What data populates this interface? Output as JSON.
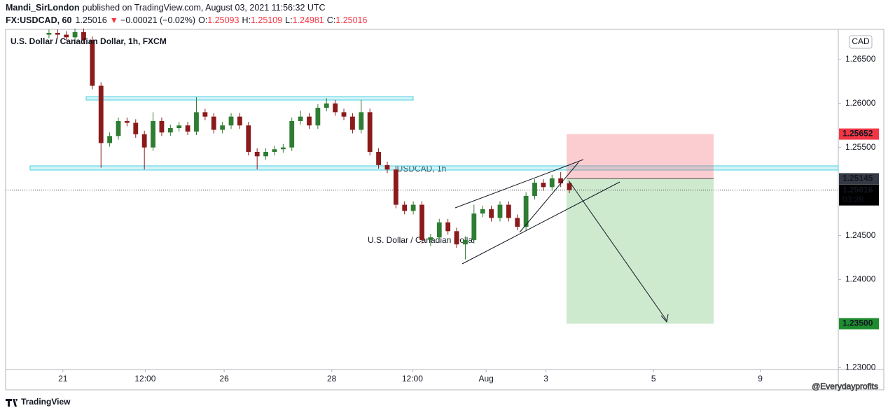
{
  "header": {
    "author": "Mandi_SirLondon",
    "published": "published on TradingView.com, August 03, 2021 11:56:32 UTC",
    "symbol": "FX:USDCAD, 60",
    "price": "1.25016",
    "change": "−0.00021 (−0.02%)",
    "ohlc": [
      {
        "label": "O:",
        "value": "1.25093"
      },
      {
        "label": "H:",
        "value": "1.25109"
      },
      {
        "label": "L:",
        "value": "1.24981"
      },
      {
        "label": "C:",
        "value": "1.25016"
      }
    ]
  },
  "chart_data": {
    "type": "candlestick",
    "title": "U.S. Dollar / Canadian Dollar, 1h, FXCM",
    "watermark": "USDCAD, 1h",
    "watermark_subtitle": "U.S. Dollar / Canadian Dollar",
    "currency": "CAD",
    "up_color": "#2e7d32",
    "down_color": "#8b1a1a",
    "open": [
      1.2678,
      1.268,
      1.2678,
      1.2675,
      1.2681,
      1.2672,
      1.262,
      1.2555,
      1.2563,
      1.258,
      1.2578,
      1.2565,
      1.255,
      1.258,
      1.2567,
      1.2572,
      1.2575,
      1.2568,
      1.259,
      1.2585,
      1.257,
      1.2575,
      1.2585,
      1.2575,
      1.2545,
      1.254,
      1.2545,
      1.2548,
      1.255,
      1.258,
      1.2585,
      1.2575,
      1.2595,
      1.26,
      1.259,
      1.2585,
      1.257,
      1.259,
      1.2545,
      1.253,
      1.2525,
      1.2485,
      1.2478,
      1.2485,
      1.2445,
      1.2448,
      1.2465,
      1.2455,
      1.244,
      1.2445,
      1.2475,
      1.248,
      1.247,
      1.2485,
      1.247,
      1.246,
      1.2495,
      1.251,
      1.2505,
      1.2515,
      1.25093
    ],
    "high": [
      1.2684,
      1.2684,
      1.2682,
      1.2685,
      1.2685,
      1.2676,
      1.2624,
      1.2567,
      1.2584,
      1.2584,
      1.2582,
      1.2569,
      1.259,
      1.2584,
      1.2576,
      1.2579,
      1.2579,
      1.2607,
      1.2594,
      1.2589,
      1.2579,
      1.2589,
      1.2589,
      1.2579,
      1.2549,
      1.2549,
      1.2552,
      1.2554,
      1.2584,
      1.2592,
      1.2589,
      1.2599,
      1.2606,
      1.2604,
      1.2594,
      1.2589,
      1.2604,
      1.2594,
      1.2549,
      1.2534,
      1.2529,
      1.2489,
      1.2489,
      1.2489,
      1.2452,
      1.2469,
      1.2469,
      1.2459,
      1.2449,
      1.2485,
      1.2484,
      1.2484,
      1.2489,
      1.2489,
      1.2474,
      1.2499,
      1.2514,
      1.2514,
      1.2519,
      1.2522,
      1.25109
    ],
    "low": [
      1.2674,
      1.2674,
      1.2671,
      1.2671,
      1.2668,
      1.2616,
      1.2527,
      1.2551,
      1.2559,
      1.2574,
      1.2561,
      1.2525,
      1.2546,
      1.2563,
      1.2563,
      1.2568,
      1.2564,
      1.2564,
      1.2581,
      1.2566,
      1.2566,
      1.2571,
      1.2571,
      1.2541,
      1.2525,
      1.2536,
      1.2541,
      1.2544,
      1.2546,
      1.2576,
      1.2571,
      1.2571,
      1.2591,
      1.2586,
      1.2581,
      1.2566,
      1.2566,
      1.2541,
      1.2526,
      1.2521,
      1.2481,
      1.2474,
      1.2474,
      1.2441,
      1.2438,
      1.2444,
      1.2451,
      1.2436,
      1.2423,
      1.2441,
      1.2471,
      1.2466,
      1.2466,
      1.2466,
      1.2456,
      1.2456,
      1.2491,
      1.2501,
      1.2501,
      1.2505,
      1.24981
    ],
    "close": [
      1.268,
      1.2678,
      1.2675,
      1.2681,
      1.2672,
      1.262,
      1.2555,
      1.2563,
      1.258,
      1.2578,
      1.2565,
      1.255,
      1.258,
      1.2567,
      1.2572,
      1.2575,
      1.2568,
      1.259,
      1.2585,
      1.257,
      1.2575,
      1.2585,
      1.2575,
      1.2545,
      1.254,
      1.2545,
      1.2548,
      1.255,
      1.258,
      1.2585,
      1.2575,
      1.2595,
      1.26,
      1.259,
      1.2585,
      1.257,
      1.259,
      1.2545,
      1.253,
      1.2525,
      1.2485,
      1.2478,
      1.2485,
      1.2445,
      1.2448,
      1.2465,
      1.2455,
      1.244,
      1.2445,
      1.2475,
      1.248,
      1.247,
      1.2485,
      1.247,
      1.246,
      1.2495,
      1.251,
      1.2505,
      1.2515,
      1.25093,
      1.25016
    ],
    "xlim": [
      -5,
      91
    ],
    "xticks": [
      {
        "value": 1.6,
        "label": "21"
      },
      {
        "value": 11.1,
        "label": "12:00"
      },
      {
        "value": 20.2,
        "label": "26"
      },
      {
        "value": 32.6,
        "label": "28"
      },
      {
        "value": 41.9,
        "label": "12:00"
      },
      {
        "value": 50.4,
        "label": "Aug"
      },
      {
        "value": 57.3,
        "label": "3"
      },
      {
        "value": 69.7,
        "label": "5"
      },
      {
        "value": 82.0,
        "label": "9"
      }
    ],
    "ylim": [
      1.2298,
      1.2684
    ],
    "yticks": [
      {
        "value": 1.265,
        "label": "1.26500"
      },
      {
        "value": 1.26,
        "label": "1.26000"
      },
      {
        "value": 1.255,
        "label": "1.25500"
      },
      {
        "value": 1.245,
        "label": "1.24500"
      },
      {
        "value": 1.24,
        "label": "1.24000"
      },
      {
        "value": 1.23,
        "label": "1.23000"
      }
    ],
    "levels": {
      "values": [
        1.25652,
        1.25145,
        1.25016,
        1.235
      ],
      "value_labels": [
        "1.25652",
        "1.25145",
        "1.25016",
        "1.23500"
      ],
      "colors": [
        "#f23645",
        "#363a45",
        "#000000",
        "#1e8c2e"
      ]
    },
    "countdown": "03:28"
  },
  "footer": {
    "brand": "TradingView",
    "credit": "@Everydayprofits"
  }
}
